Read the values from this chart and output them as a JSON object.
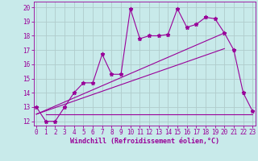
{
  "title": "",
  "xlabel": "Windchill (Refroidissement éolien,°C)",
  "bg_color": "#c8eaea",
  "line_color": "#990099",
  "grid_color": "#b0cccc",
  "x_measured": [
    0,
    1,
    2,
    3,
    4,
    5,
    6,
    7,
    8,
    9,
    10,
    11,
    12,
    13,
    14,
    15,
    16,
    17,
    18,
    19,
    20,
    21,
    22,
    23
  ],
  "y_measured": [
    13.0,
    12.0,
    12.0,
    13.0,
    14.0,
    14.7,
    14.7,
    16.7,
    15.3,
    15.3,
    19.9,
    17.8,
    18.0,
    18.0,
    18.1,
    19.9,
    18.6,
    18.8,
    19.3,
    19.2,
    18.2,
    17.0,
    14.0,
    12.7
  ],
  "x_line1_start": 0,
  "y_line1_start": 12.5,
  "x_line1_end": 20,
  "y_line1_end": 18.2,
  "x_line2_start": 0,
  "y_line2_start": 12.5,
  "x_line2_end": 20,
  "y_line2_end": 17.1,
  "x_flat_start": 1,
  "y_flat": 12.5,
  "x_flat_end": 23,
  "xlim": [
    -0.3,
    23.3
  ],
  "ylim": [
    11.7,
    20.4
  ],
  "yticks": [
    12,
    13,
    14,
    15,
    16,
    17,
    18,
    19,
    20
  ],
  "xticks": [
    0,
    1,
    2,
    3,
    4,
    5,
    6,
    7,
    8,
    9,
    10,
    11,
    12,
    13,
    14,
    15,
    16,
    17,
    18,
    19,
    20,
    21,
    22,
    23
  ],
  "tick_fontsize": 5.5,
  "xlabel_fontsize": 6.0
}
